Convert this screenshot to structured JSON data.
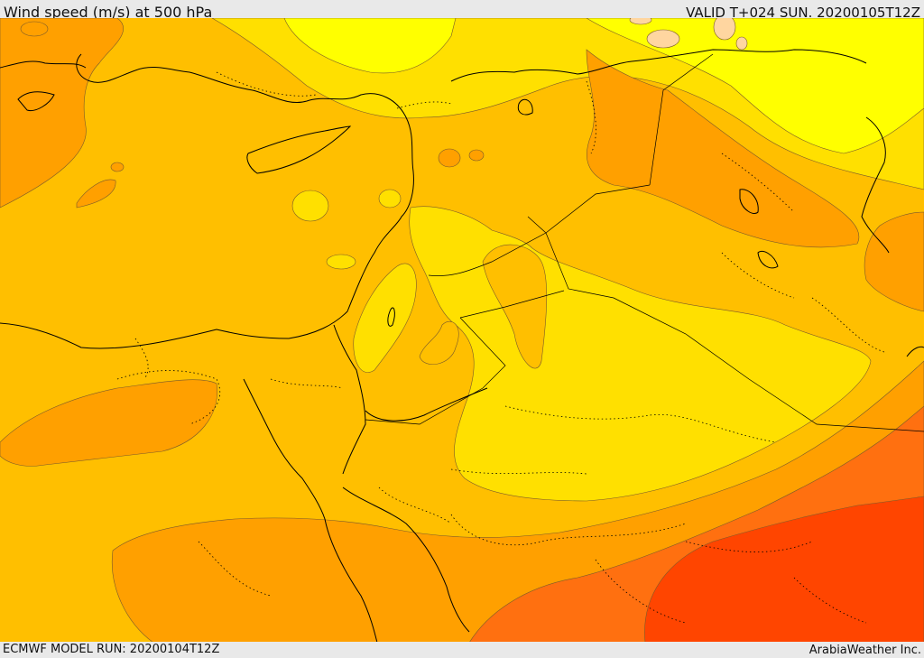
{
  "header": {
    "title": "Wind speed (m/s) at 500 hPa",
    "valid": "VALID T+024 SUN. 20200105T12Z"
  },
  "footer": {
    "model_run": "ECMWF MODEL RUN: 20200104T12Z",
    "credit": "ArabiaWeather Inc."
  },
  "colors": {
    "band_light_yellow": "#ffff00",
    "band_yellow": "#ffe000",
    "band_gold": "#ffbf00",
    "band_orange": "#ffa000",
    "band_dark_orange": "#ff7010",
    "band_red": "#ff4500",
    "peach_spots": "#ffd6a0",
    "coastline": "#000000"
  }
}
